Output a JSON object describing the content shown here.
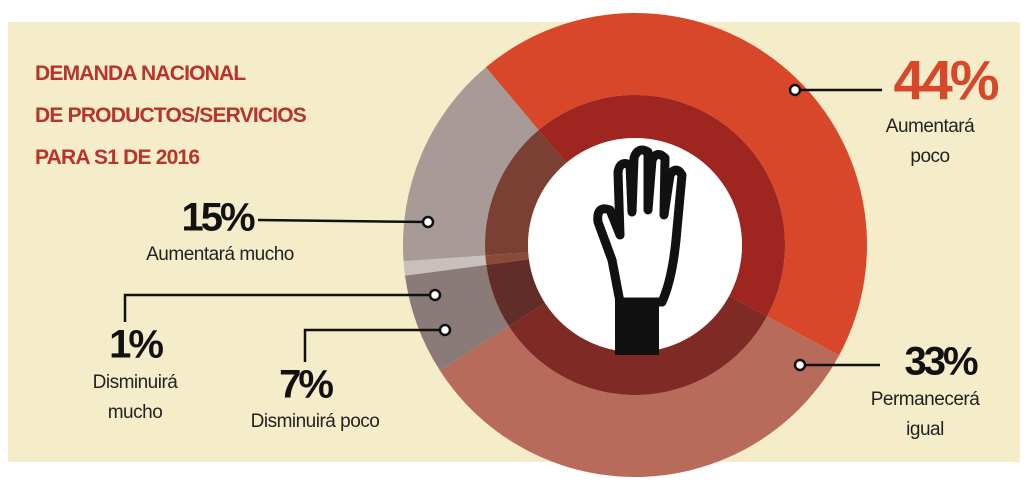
{
  "chart_data": {
    "type": "donut",
    "title_lines": [
      "DEMANDA NACIONAL",
      "DE PRODUCTOS/SERVICIOS",
      "PARA S1 DE 2016"
    ],
    "categories": [
      "Aumentará poco",
      "Permanecerá igual",
      "Disminuirá poco",
      "Disminuirá mucho",
      "Aumentará mucho"
    ],
    "values": [
      44,
      33,
      7,
      1,
      15
    ],
    "value_labels": [
      "44%",
      "33%",
      "7%",
      "1%",
      "15%"
    ],
    "colors": [
      "#d9472b",
      "#b86b5a",
      "#8a7a78",
      "#c8c0bc",
      "#a89a96"
    ],
    "inner_colors": [
      "#9e2520",
      "#7f2a24",
      "#622c28",
      "#8a4a3a",
      "#7a4034"
    ]
  }
}
